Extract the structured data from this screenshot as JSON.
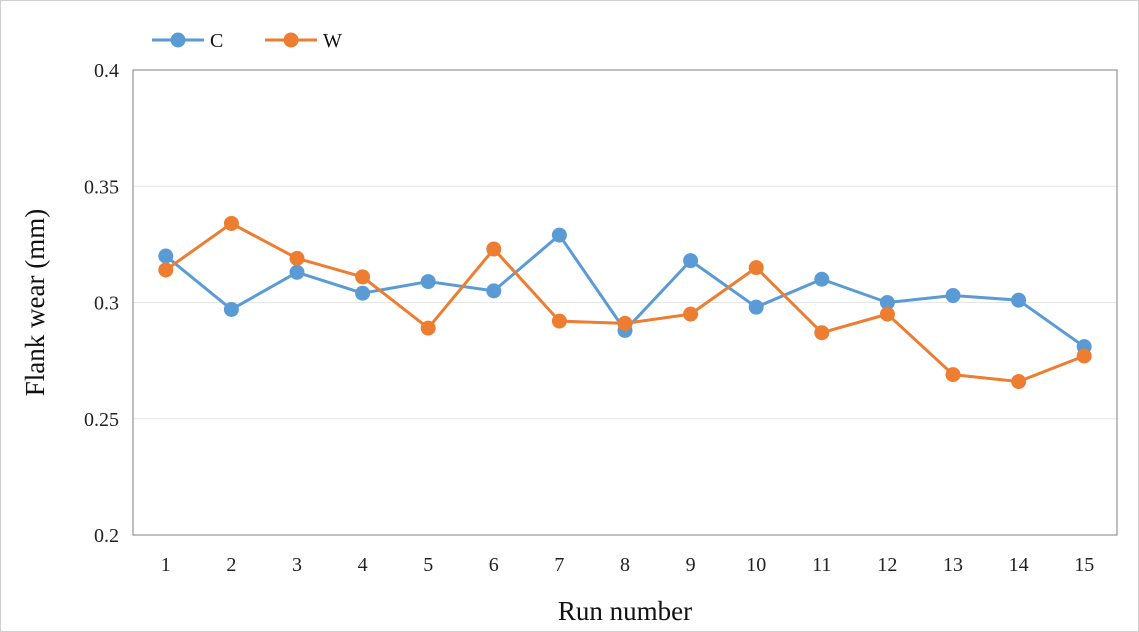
{
  "chart_data": {
    "type": "line",
    "xlabel": "Run number",
    "ylabel": "Flank wear (mm)",
    "categories": [
      "1",
      "2",
      "3",
      "4",
      "5",
      "6",
      "7",
      "8",
      "9",
      "10",
      "11",
      "12",
      "13",
      "14",
      "15"
    ],
    "ylim": [
      0.2,
      0.4
    ],
    "yticks": [
      "0.2",
      "0.25",
      "0.3",
      "0.35",
      "0.4"
    ],
    "ytick_values": [
      0.2,
      0.25,
      0.3,
      0.35,
      0.4
    ],
    "grid": true,
    "legend_position": "top-left",
    "series": [
      {
        "name": "C",
        "color": "#5B9BD5",
        "values": [
          0.32,
          0.297,
          0.313,
          0.304,
          0.309,
          0.305,
          0.329,
          0.288,
          0.318,
          0.298,
          0.31,
          0.3,
          0.303,
          0.301,
          0.281
        ]
      },
      {
        "name": "W",
        "color": "#ED7D31",
        "values": [
          0.314,
          0.334,
          0.319,
          0.311,
          0.289,
          0.323,
          0.292,
          0.291,
          0.295,
          0.315,
          0.287,
          0.295,
          0.269,
          0.266,
          0.277
        ]
      }
    ]
  }
}
